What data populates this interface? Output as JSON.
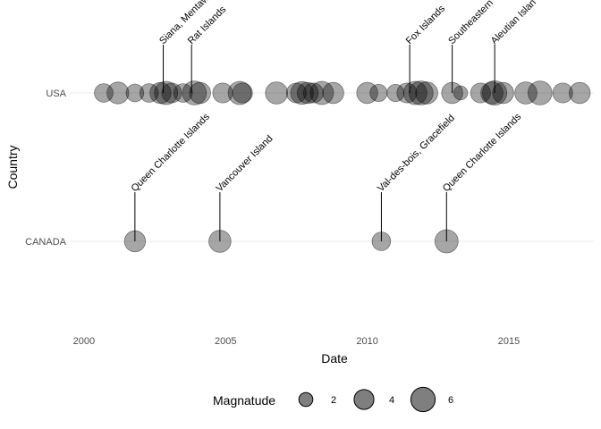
{
  "chart_data": {
    "type": "scatter",
    "xlabel": "Date",
    "ylabel": "Country",
    "xlim": [
      1999.5,
      2018.0
    ],
    "xticks": [
      2000,
      2005,
      2010,
      2015
    ],
    "categories": [
      "USA",
      "CANADA"
    ],
    "grid": true,
    "point_color": "#000000",
    "point_alpha": 0.35,
    "size_legend": {
      "title": "Magnatude",
      "position": "bottom",
      "values": [
        2,
        4,
        6
      ]
    },
    "series": [
      {
        "country": "USA",
        "points": [
          {
            "x": 2000.7,
            "magnitude": 3.5
          },
          {
            "x": 2001.2,
            "magnitude": 4.8
          },
          {
            "x": 2001.8,
            "magnitude": 3.2
          },
          {
            "x": 2002.3,
            "magnitude": 3.5
          },
          {
            "x": 2002.7,
            "magnitude": 4.5
          },
          {
            "x": 2002.9,
            "magnitude": 5.5
          },
          {
            "x": 2003.1,
            "magnitude": 4.0
          },
          {
            "x": 2003.5,
            "magnitude": 3.5
          },
          {
            "x": 2003.9,
            "magnitude": 5.8
          },
          {
            "x": 2004.1,
            "magnitude": 4.5
          },
          {
            "x": 2004.9,
            "magnitude": 4.0
          },
          {
            "x": 2005.5,
            "magnitude": 5.5
          },
          {
            "x": 2005.6,
            "magnitude": 4.0
          },
          {
            "x": 2006.8,
            "magnitude": 5.0
          },
          {
            "x": 2007.5,
            "magnitude": 4.0
          },
          {
            "x": 2007.7,
            "magnitude": 5.2
          },
          {
            "x": 2007.9,
            "magnitude": 4.5
          },
          {
            "x": 2008.1,
            "magnitude": 4.0
          },
          {
            "x": 2008.4,
            "magnitude": 5.5
          },
          {
            "x": 2008.8,
            "magnitude": 4.5
          },
          {
            "x": 2010.0,
            "magnitude": 4.5
          },
          {
            "x": 2010.4,
            "magnitude": 3.0
          },
          {
            "x": 2011.0,
            "magnitude": 3.0
          },
          {
            "x": 2011.4,
            "magnitude": 4.0
          },
          {
            "x": 2011.7,
            "magnitude": 5.5
          },
          {
            "x": 2011.9,
            "magnitude": 5.8
          },
          {
            "x": 2012.1,
            "magnitude": 5.0
          },
          {
            "x": 2013.0,
            "magnitude": 4.5
          },
          {
            "x": 2013.3,
            "magnitude": 2.0
          },
          {
            "x": 2014.0,
            "magnitude": 4.0
          },
          {
            "x": 2014.4,
            "magnitude": 5.0
          },
          {
            "x": 2014.5,
            "magnitude": 6.0
          },
          {
            "x": 2014.8,
            "magnitude": 4.5
          },
          {
            "x": 2015.6,
            "magnitude": 5.0
          },
          {
            "x": 2016.1,
            "magnitude": 5.8
          },
          {
            "x": 2016.9,
            "magnitude": 4.0
          },
          {
            "x": 2017.5,
            "magnitude": 4.5
          }
        ]
      },
      {
        "country": "CANADA",
        "points": [
          {
            "x": 2001.8,
            "magnitude": 4.5
          },
          {
            "x": 2004.8,
            "magnitude": 5.0
          },
          {
            "x": 2010.5,
            "magnitude": 3.5
          },
          {
            "x": 2012.8,
            "magnitude": 5.5
          }
        ]
      }
    ],
    "annotations": [
      {
        "country": "USA",
        "x": 2002.8,
        "text": "Siana, Mentaw"
      },
      {
        "country": "USA",
        "x": 2003.8,
        "text": "Rat Islands"
      },
      {
        "country": "USA",
        "x": 2011.5,
        "text": "Fox Islands"
      },
      {
        "country": "USA",
        "x": 2013.0,
        "text": "Southeastern"
      },
      {
        "country": "USA",
        "x": 2014.5,
        "text": "Aleutian Islan"
      },
      {
        "country": "CANADA",
        "x": 2001.8,
        "text": "Queen Charlotte Islands"
      },
      {
        "country": "CANADA",
        "x": 2004.8,
        "text": "Vancouver Island"
      },
      {
        "country": "CANADA",
        "x": 2010.5,
        "text": "Val-des-bois, Gracefield"
      },
      {
        "country": "CANADA",
        "x": 2012.8,
        "text": "Queen Charlotte Islands"
      }
    ]
  }
}
